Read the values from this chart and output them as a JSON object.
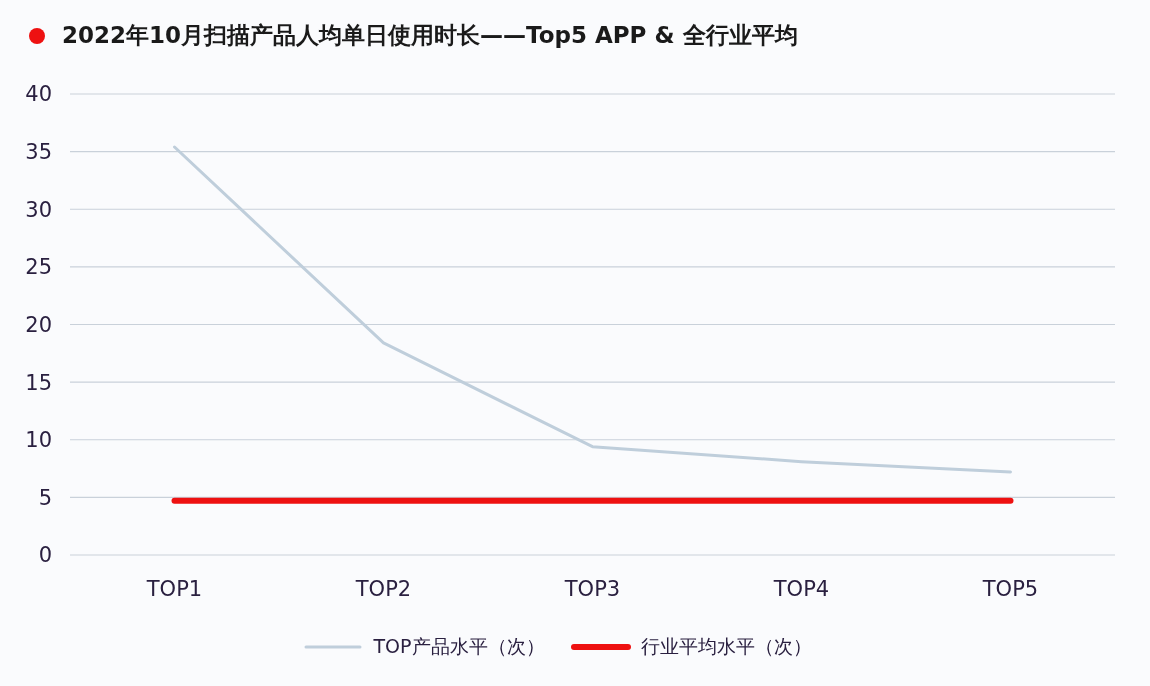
{
  "chart_data": {
    "type": "line",
    "title": "2022年10月扫描产品人均单日使用时长——Top5 APP & 全行业平均",
    "categories": [
      "TOP1",
      "TOP2",
      "TOP3",
      "TOP4",
      "TOP5"
    ],
    "series": [
      {
        "name": "TOP产品水平（次）",
        "color": "#bfcedb",
        "values": [
          35.4,
          18.4,
          9.4,
          8.1,
          7.2
        ]
      },
      {
        "name": "行业平均水平（次）",
        "color": "#ee1111",
        "values": [
          4.7,
          4.7,
          4.7,
          4.7,
          4.7
        ]
      }
    ],
    "ylim": [
      0,
      40
    ],
    "yticks": [
      0,
      5,
      10,
      15,
      20,
      25,
      30,
      35,
      40
    ],
    "grid": "y",
    "legend": "bottom",
    "marker": "none"
  }
}
